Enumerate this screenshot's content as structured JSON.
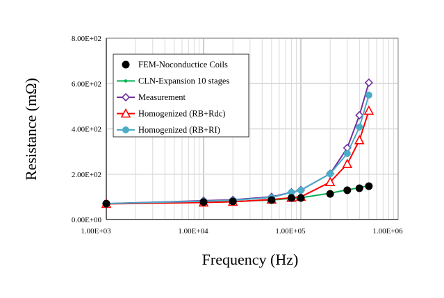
{
  "chart_data": {
    "type": "line",
    "title": "",
    "xlabel": "Frequency (Hz)",
    "ylabel": "Resistance (mΩ)",
    "xscale": "log",
    "xlim": [
      1000,
      1000000
    ],
    "ylim": [
      0,
      800
    ],
    "grid": true,
    "legend_position": "top-left",
    "x_ticks": [
      "1.00E+03",
      "1.00E+04",
      "1.00E+05",
      "1.00E+06"
    ],
    "x_tick_values": [
      1000,
      10000,
      100000,
      1000000
    ],
    "y_ticks": [
      "0.00E+00",
      "2.00E+02",
      "4.00E+02",
      "6.00E+02",
      "8.00E+02"
    ],
    "y_tick_values": [
      0,
      200,
      400,
      600,
      800
    ],
    "x": [
      1000,
      10000,
      20000,
      50000,
      80000,
      100000,
      200000,
      300000,
      400000,
      500000
    ],
    "series": [
      {
        "name": "FEM-Noconductice Coils",
        "color": "#000000",
        "marker": "filled-circle",
        "line": false,
        "values": [
          70,
          77,
          80,
          86,
          95,
          95,
          113,
          129,
          138,
          147
        ]
      },
      {
        "name": "CLN-Expansion 10 stages",
        "color": "#00b050",
        "marker": "small-circle",
        "line": true,
        "values": [
          70,
          76,
          79,
          86,
          93,
          96,
          116,
          131,
          140,
          150
        ]
      },
      {
        "name": "Measurement",
        "color": "#7030a0",
        "marker": "open-diamond",
        "line": true,
        "values": [
          70,
          83,
          87,
          100,
          120,
          130,
          202,
          316,
          460,
          604
        ]
      },
      {
        "name": "Homogenized (RB+Rdc)",
        "color": "#ff0000",
        "marker": "open-triangle",
        "line": true,
        "values": [
          69,
          75,
          78,
          88,
          96,
          100,
          165,
          245,
          350,
          480
        ]
      },
      {
        "name": "Homogenized (RB+RI)",
        "color": "#4bacc6",
        "marker": "filled-circle",
        "line": true,
        "values": [
          70,
          81,
          85,
          97,
          120,
          129,
          202,
          291,
          408,
          549
        ]
      }
    ]
  }
}
